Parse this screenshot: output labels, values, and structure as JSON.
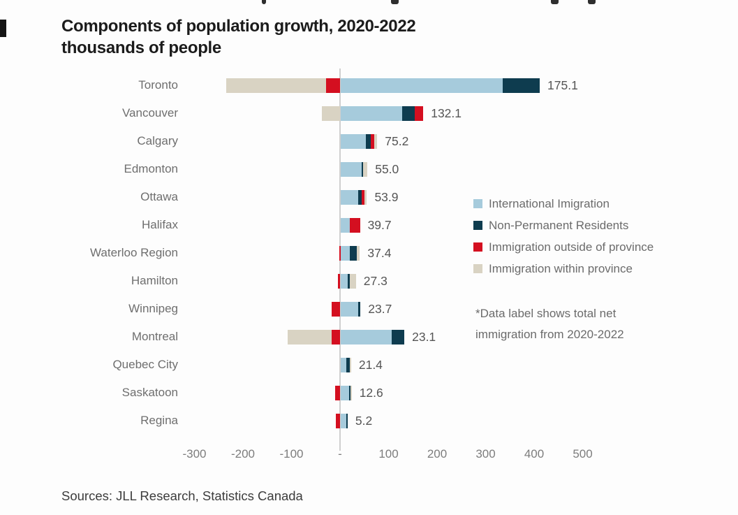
{
  "header": {
    "title": "Components of population growth, 2020-2022",
    "subtitle": "thousands of people"
  },
  "note": {
    "line1": "*Data label shows total net",
    "line2": "immigration from 2020-2022"
  },
  "footer": {
    "sources": "Sources: JLL Research, Statistics Canada"
  },
  "chart_data": {
    "type": "bar",
    "variant": "horizontal-diverging-stacked",
    "title": "Components of population growth, 2020-2022",
    "subtitle_units": "thousands of people",
    "grid": "off",
    "legend_position": "right-middle",
    "zero_line_color": "#cfcfcf",
    "xlim": [
      -340,
      560
    ],
    "categories": [
      "Toronto",
      "Vancouver",
      "Calgary",
      "Edmonton",
      "Ottawa",
      "Halifax",
      "Waterloo Region",
      "Hamilton",
      "Winnipeg",
      "Montreal",
      "Quebec City",
      "Saskatoon",
      "Regina"
    ],
    "series": [
      {
        "name": "International Imigration",
        "key": "international",
        "color": "#a6cbdc",
        "values": [
          334,
          127.1,
          52,
          43,
          36,
          18.7,
          19,
          15,
          35.5,
          105,
          12,
          17,
          11
        ]
      },
      {
        "name": "Non-Permanent Residents",
        "key": "non-permanent-residents",
        "color": "#0e3c4f",
        "values": [
          76.1,
          25,
          10,
          2.5,
          7.5,
          0,
          14.5,
          3,
          5.2,
          26.1,
          7,
          3,
          3.2
        ]
      },
      {
        "name": "Immigration outside of province",
        "key": "outside-province",
        "color": "#d40f20",
        "values": [
          -29,
          18,
          7,
          0,
          5,
          21,
          -2,
          -4,
          -17,
          -17,
          0,
          -10,
          -9
        ]
      },
      {
        "name": "Immigration within province",
        "key": "within-province",
        "color": "#d9d3c3",
        "values": [
          -206,
          -38,
          6.2,
          9.5,
          5.4,
          0,
          5.9,
          13.3,
          0,
          -91,
          2.4,
          2.6,
          0
        ]
      }
    ],
    "totals_labels": [
      "175.1",
      "132.1",
      "75.2",
      "55.0",
      "53.9",
      "39.7",
      "37.4",
      "27.3",
      "23.7",
      "23.1",
      "21.4",
      "12.6",
      "5.2"
    ],
    "xticks": [
      {
        "value": -300,
        "label": "-300"
      },
      {
        "value": -200,
        "label": "-200"
      },
      {
        "value": -100,
        "label": "-100"
      },
      {
        "value": 0,
        "label": "-"
      },
      {
        "value": 100,
        "label": "100"
      },
      {
        "value": 200,
        "label": "200"
      },
      {
        "value": 300,
        "label": "300"
      },
      {
        "value": 400,
        "label": "400"
      },
      {
        "value": 500,
        "label": "500"
      }
    ]
  }
}
